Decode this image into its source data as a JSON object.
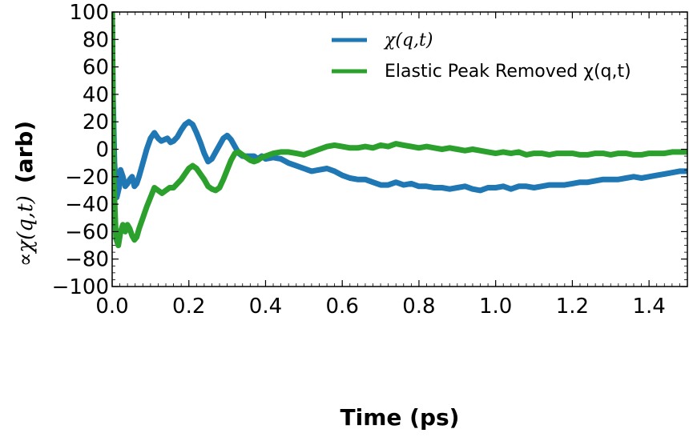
{
  "chart_data": {
    "type": "line",
    "xlabel": "Time (ps)",
    "ylabel_prefix": "∝χ(q,t)",
    "ylabel_suffix": "(arb)",
    "xlim": [
      0.0,
      1.5
    ],
    "ylim": [
      -100,
      100
    ],
    "xticks": [
      "0.0",
      "0.2",
      "0.4",
      "0.6",
      "0.8",
      "1.0",
      "1.2",
      "1.4"
    ],
    "yticks": [
      "−100",
      "−80",
      "−60",
      "−40",
      "−20",
      "0",
      "20",
      "40",
      "60",
      "80",
      "100"
    ],
    "legend_position": "top-right",
    "grid": false,
    "series": [
      {
        "name": "χ(q,t)",
        "color": "#1f77b4",
        "x": [
          0.0,
          0.002,
          0.006,
          0.012,
          0.018,
          0.022,
          0.028,
          0.034,
          0.04,
          0.046,
          0.052,
          0.058,
          0.064,
          0.07,
          0.08,
          0.09,
          0.1,
          0.11,
          0.12,
          0.128,
          0.136,
          0.144,
          0.152,
          0.16,
          0.17,
          0.18,
          0.19,
          0.2,
          0.21,
          0.22,
          0.23,
          0.24,
          0.25,
          0.26,
          0.27,
          0.28,
          0.29,
          0.3,
          0.31,
          0.32,
          0.33,
          0.34,
          0.35,
          0.36,
          0.37,
          0.38,
          0.39,
          0.4,
          0.42,
          0.44,
          0.46,
          0.48,
          0.5,
          0.52,
          0.54,
          0.56,
          0.58,
          0.6,
          0.62,
          0.64,
          0.66,
          0.68,
          0.7,
          0.72,
          0.74,
          0.76,
          0.78,
          0.8,
          0.82,
          0.84,
          0.86,
          0.88,
          0.9,
          0.92,
          0.94,
          0.96,
          0.98,
          1.0,
          1.02,
          1.04,
          1.06,
          1.08,
          1.1,
          1.12,
          1.14,
          1.16,
          1.18,
          1.2,
          1.22,
          1.24,
          1.26,
          1.28,
          1.3,
          1.32,
          1.34,
          1.36,
          1.38,
          1.4,
          1.42,
          1.44,
          1.46,
          1.48,
          1.5
        ],
        "values": [
          95,
          40,
          -10,
          -35,
          -28,
          -15,
          -20,
          -27,
          -25,
          -22,
          -20,
          -27,
          -25,
          -20,
          -10,
          0,
          8,
          12,
          8,
          6,
          7,
          8,
          5,
          6,
          9,
          14,
          18,
          20,
          18,
          12,
          5,
          -3,
          -9,
          -7,
          -2,
          3,
          8,
          10,
          7,
          2,
          -3,
          -5,
          -5,
          -5,
          -5,
          -7,
          -5,
          -7,
          -6,
          -7,
          -10,
          -12,
          -14,
          -16,
          -15,
          -14,
          -16,
          -19,
          -21,
          -22,
          -22,
          -24,
          -26,
          -26,
          -24,
          -26,
          -25,
          -27,
          -27,
          -28,
          -28,
          -29,
          -28,
          -27,
          -29,
          -30,
          -28,
          -28,
          -27,
          -29,
          -27,
          -27,
          -28,
          -27,
          -26,
          -26,
          -26,
          -25,
          -24,
          -24,
          -23,
          -22,
          -22,
          -22,
          -21,
          -20,
          -21,
          -20,
          -19,
          -18,
          -17,
          -16,
          -16
        ]
      },
      {
        "name": "Elastic Peak Removed χ(q,t)",
        "color": "#2ca02c",
        "x": [
          0.0,
          0.004,
          0.01,
          0.016,
          0.022,
          0.028,
          0.034,
          0.04,
          0.046,
          0.052,
          0.058,
          0.064,
          0.07,
          0.08,
          0.09,
          0.1,
          0.11,
          0.12,
          0.13,
          0.14,
          0.15,
          0.16,
          0.17,
          0.18,
          0.19,
          0.2,
          0.21,
          0.22,
          0.23,
          0.24,
          0.25,
          0.26,
          0.27,
          0.28,
          0.29,
          0.3,
          0.31,
          0.32,
          0.33,
          0.34,
          0.35,
          0.36,
          0.37,
          0.38,
          0.39,
          0.4,
          0.42,
          0.44,
          0.46,
          0.48,
          0.5,
          0.52,
          0.54,
          0.56,
          0.58,
          0.6,
          0.62,
          0.64,
          0.66,
          0.68,
          0.7,
          0.72,
          0.74,
          0.76,
          0.78,
          0.8,
          0.82,
          0.84,
          0.86,
          0.88,
          0.9,
          0.92,
          0.94,
          0.96,
          0.98,
          1.0,
          1.02,
          1.04,
          1.06,
          1.08,
          1.1,
          1.12,
          1.14,
          1.16,
          1.18,
          1.2,
          1.22,
          1.24,
          1.26,
          1.28,
          1.3,
          1.32,
          1.34,
          1.36,
          1.38,
          1.4,
          1.42,
          1.44,
          1.46,
          1.48,
          1.5
        ],
        "values": [
          100,
          -20,
          -65,
          -70,
          -60,
          -55,
          -60,
          -55,
          -58,
          -63,
          -66,
          -64,
          -58,
          -50,
          -42,
          -35,
          -28,
          -30,
          -32,
          -30,
          -28,
          -28,
          -25,
          -22,
          -18,
          -14,
          -12,
          -14,
          -18,
          -22,
          -27,
          -29,
          -30,
          -28,
          -22,
          -15,
          -8,
          -3,
          -2,
          -4,
          -6,
          -8,
          -9,
          -8,
          -6,
          -5,
          -3,
          -2,
          -2,
          -3,
          -4,
          -2,
          0,
          2,
          3,
          2,
          1,
          1,
          2,
          1,
          3,
          2,
          4,
          3,
          2,
          1,
          2,
          1,
          0,
          1,
          0,
          -1,
          0,
          -1,
          -2,
          -3,
          -2,
          -3,
          -2,
          -4,
          -3,
          -3,
          -4,
          -3,
          -3,
          -3,
          -4,
          -4,
          -3,
          -3,
          -4,
          -3,
          -3,
          -4,
          -4,
          -3,
          -3,
          -3,
          -2,
          -2,
          -2
        ]
      }
    ]
  }
}
